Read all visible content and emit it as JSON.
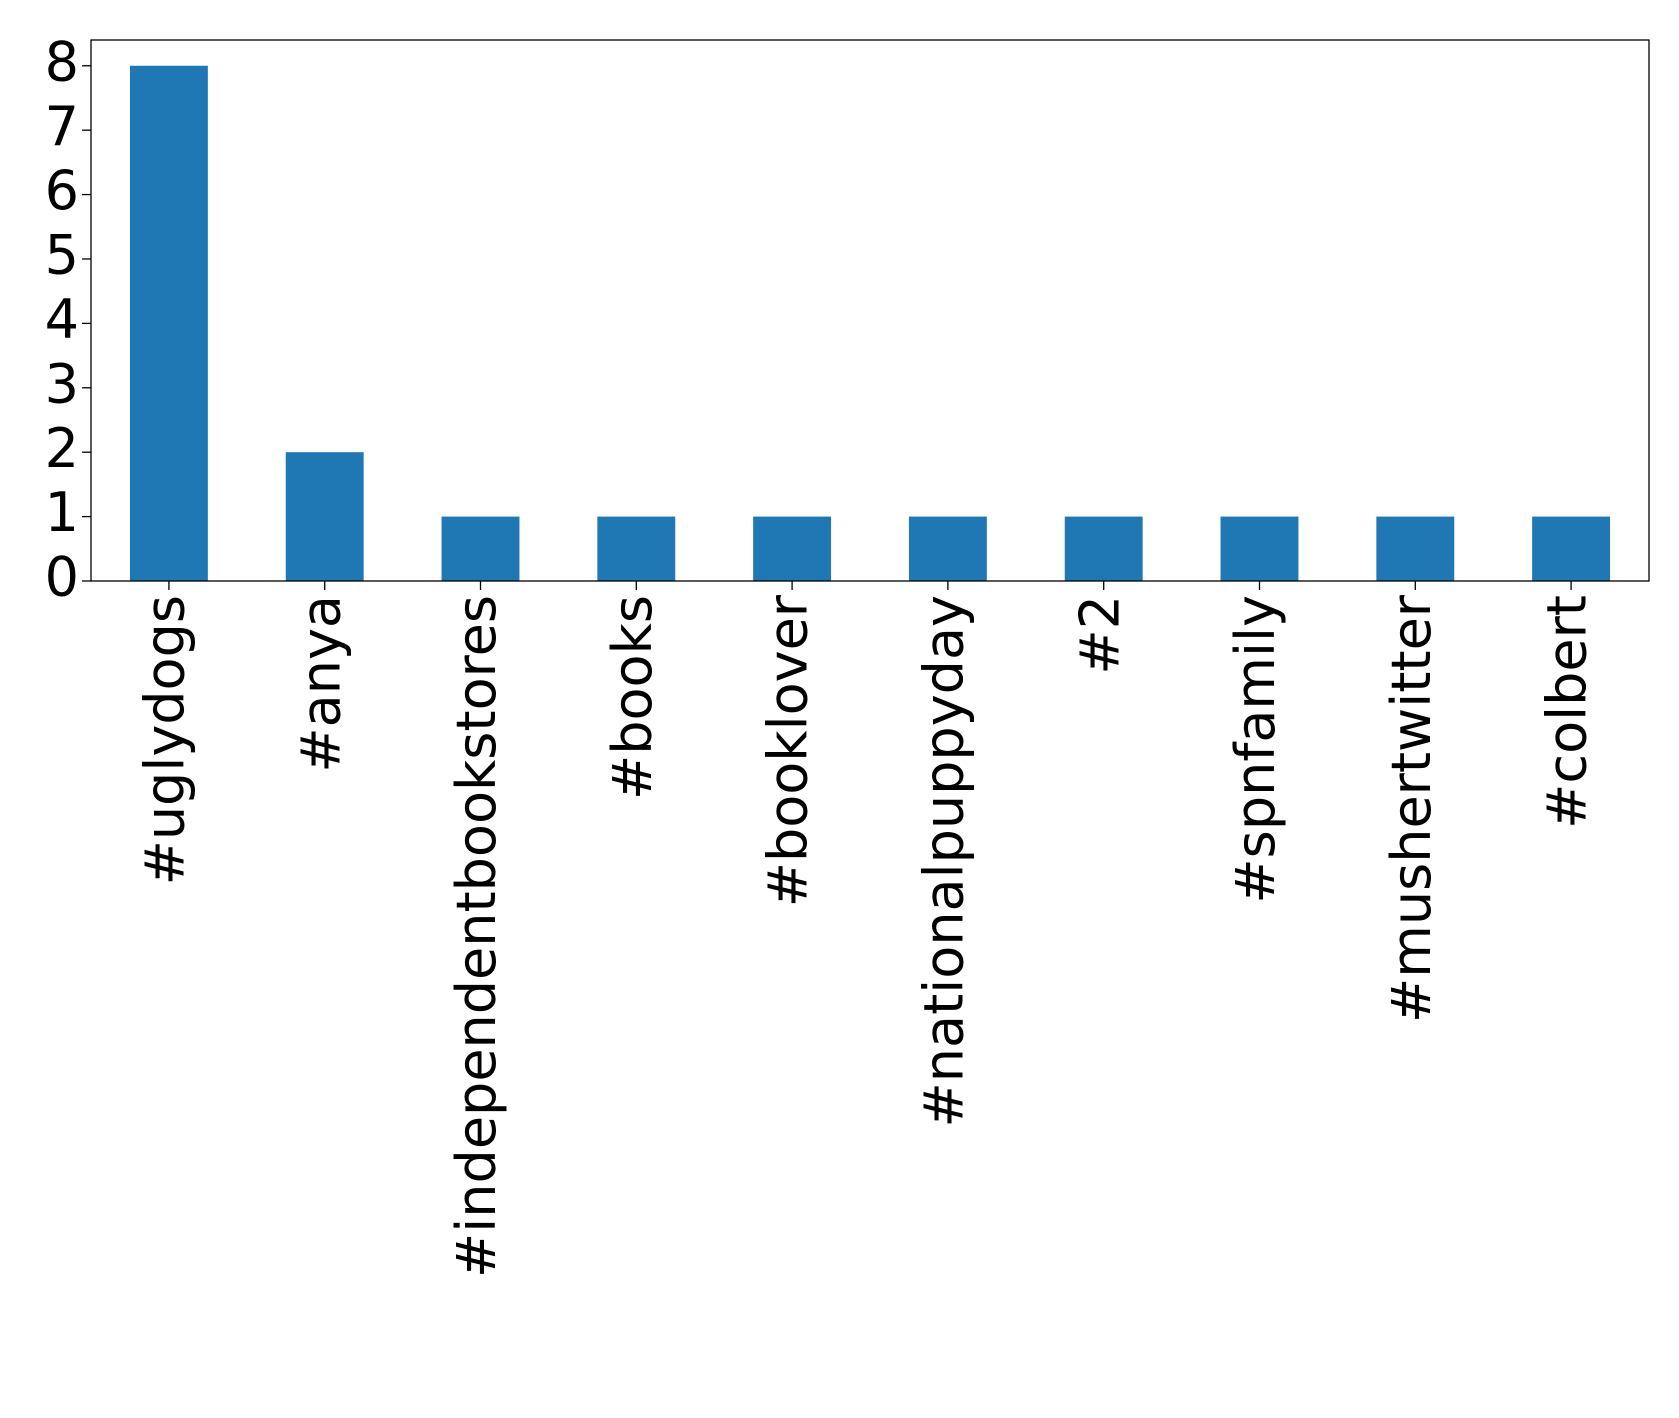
{
  "chart_data": {
    "type": "bar",
    "categories": [
      "#uglydogs",
      "#anya",
      "#independentbookstores",
      "#books",
      "#booklover",
      "#nationalpuppyday",
      "#2",
      "#spnfamily",
      "#mushertwitter",
      "#colbert"
    ],
    "values": [
      8,
      2,
      1,
      1,
      1,
      1,
      1,
      1,
      1,
      1
    ],
    "color": "#1f77b4",
    "ylim": [
      0,
      8.4
    ],
    "yticks": [
      0,
      1,
      2,
      3,
      4,
      5,
      6,
      7,
      8
    ],
    "grid": false
  }
}
